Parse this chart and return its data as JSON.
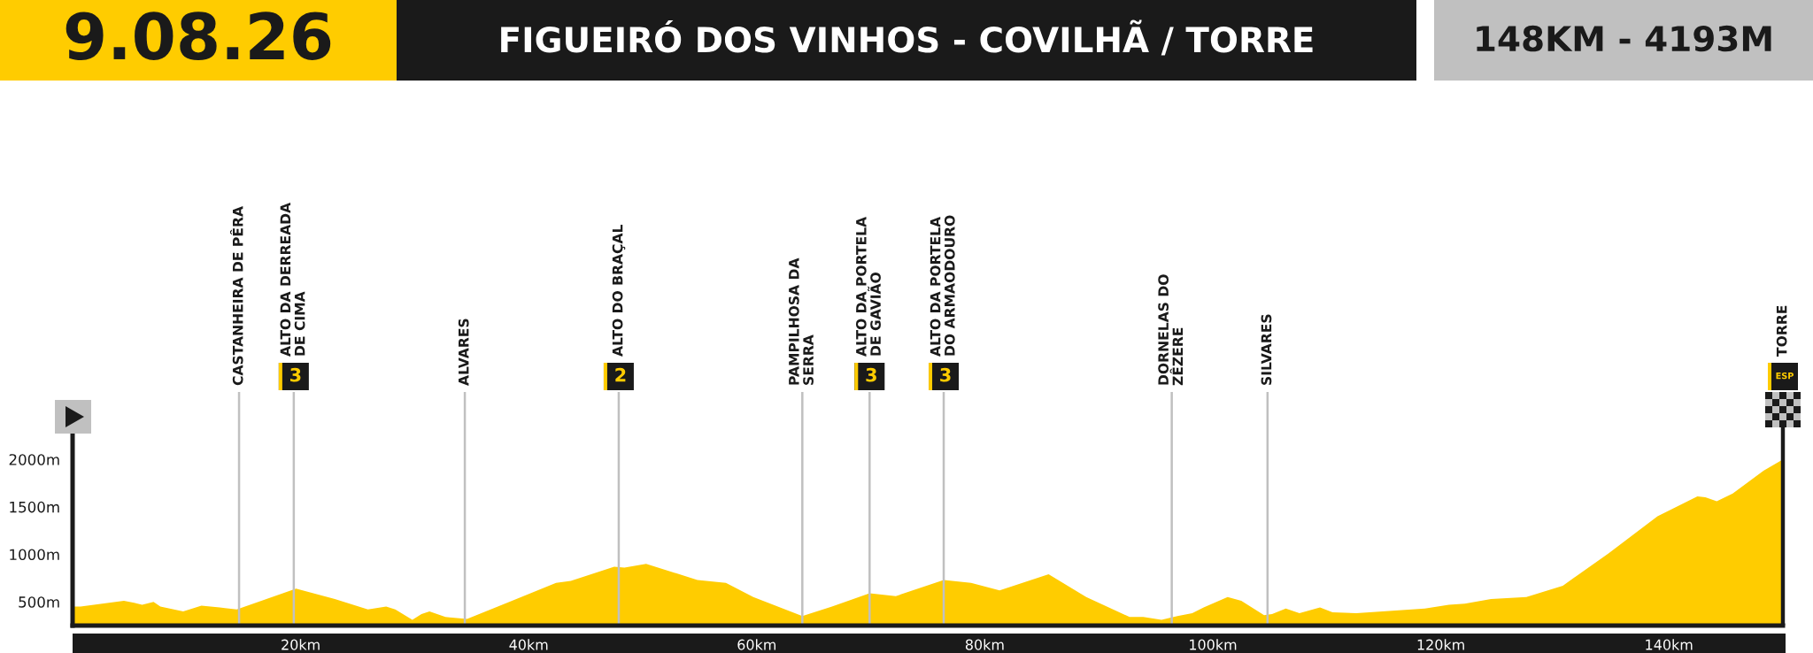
{
  "chart_data": {
    "type": "area",
    "title": "FIGUEIRÓ DOS VINHOS - COVILHÃ / TORRE",
    "subtitle": "148KM - 4193M",
    "annotations": [
      "9.08.26",
      "3",
      "2",
      "3",
      "3",
      "ESP"
    ],
    "x": [
      0,
      0.7,
      4.5,
      5.4,
      6.1,
      7.1,
      7.7,
      9.7,
      11.3,
      12.9,
      14.4,
      17.0,
      19.6,
      23.0,
      25.9,
      27.5,
      28.3,
      29.8,
      30.6,
      31.3,
      32.7,
      33.7,
      34.6,
      38.3,
      42.4,
      43.7,
      47.5,
      48.4,
      50.3,
      54.8,
      57.3,
      59.7,
      64.0,
      66.6,
      69.9,
      72.2,
      76.4,
      78.8,
      81.3,
      85.6,
      88.9,
      92.7,
      93.9,
      95.5,
      96.9,
      98.2,
      99.2,
      101.3,
      102.5,
      104.5,
      105.2,
      106.4,
      107.6,
      109.4,
      110.5,
      112.6,
      118.6,
      120.7,
      122.1,
      124.4,
      127.5,
      130.7,
      134.7,
      139.0,
      142.5,
      143.2,
      144.2,
      145.6,
      148.3,
      150
    ],
    "values": [
      450,
      450,
      510,
      490,
      470,
      500,
      450,
      400,
      460,
      440,
      420,
      530,
      640,
      530,
      420,
      450,
      420,
      310,
      370,
      400,
      340,
      330,
      320,
      500,
      700,
      720,
      870,
      860,
      900,
      730,
      700,
      550,
      350,
      450,
      590,
      560,
      730,
      700,
      620,
      790,
      550,
      340,
      340,
      310,
      350,
      380,
      440,
      550,
      510,
      360,
      370,
      430,
      380,
      440,
      390,
      380,
      430,
      470,
      480,
      530,
      550,
      670,
      1010,
      1400,
      1610,
      1600,
      1560,
      1640,
      1880,
      2000
    ],
    "color": "#ffcc00",
    "xlim": [
      0,
      150
    ],
    "xticks": [
      {
        "value": 20,
        "label": "20km"
      },
      {
        "value": 40,
        "label": "40km"
      },
      {
        "value": 60,
        "label": "60km"
      },
      {
        "value": 80,
        "label": "80km"
      },
      {
        "value": 100,
        "label": "100km"
      },
      {
        "value": 120,
        "label": "120km"
      },
      {
        "value": 140,
        "label": "140km"
      }
    ],
    "ylim": [
      250,
      2300
    ],
    "yticks": [
      {
        "value": 500,
        "label": "500m"
      },
      {
        "value": 1000,
        "label": "1000m"
      },
      {
        "value": 1500,
        "label": "1500m"
      },
      {
        "value": 2000,
        "label": "2000m"
      }
    ],
    "ref_lines": [
      {
        "axis": "x",
        "value": 14.6,
        "label": "CASTANHEIRA DE PÊRA",
        "color": "#c0c0c0"
      },
      {
        "axis": "x",
        "value": 19.4,
        "label": "ALTO DA DERREADA\nDE CIMA",
        "color": "#c0c0c0"
      },
      {
        "axis": "x",
        "value": 34.4,
        "label": "ALVARES",
        "color": "#c0c0c0"
      },
      {
        "axis": "x",
        "value": 47.9,
        "label": "ALTO DO BRAÇAL",
        "color": "#c0c0c0"
      },
      {
        "axis": "x",
        "value": 64.0,
        "label": "PAMPILHOSA DA\nSERRA",
        "color": "#c0c0c0"
      },
      {
        "axis": "x",
        "value": 69.9,
        "label": "ALTO DA PORTELA\nDE GAVIÃO",
        "color": "#c0c0c0"
      },
      {
        "axis": "x",
        "value": 76.4,
        "label": "ALTO DA PORTELA\nDO ARMAODOURO",
        "color": "#c0c0c0"
      },
      {
        "axis": "x",
        "value": 96.4,
        "label": "DORNELAS DO\nZÊZERE",
        "color": "#c0c0c0"
      },
      {
        "axis": "x",
        "value": 104.8,
        "label": "SILVARES",
        "color": "#c0c0c0"
      },
      {
        "axis": "x",
        "value": 150,
        "label": "TORRE",
        "color": "#1a1a1a"
      }
    ]
  }
}
